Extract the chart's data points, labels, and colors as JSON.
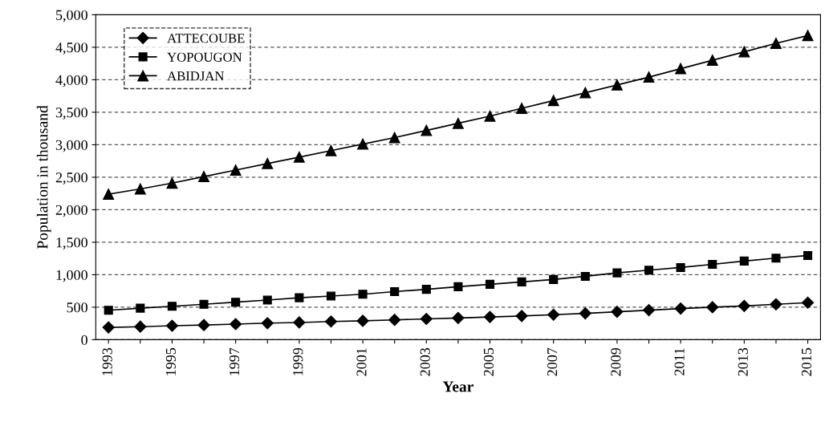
{
  "chart_data": {
    "type": "line",
    "xlabel": "Year",
    "ylabel": "Population in thousand",
    "categories": [
      "1993",
      null,
      "1995",
      null,
      "1997",
      null,
      "1999",
      null,
      "2001",
      null,
      "2003",
      null,
      "2005",
      null,
      "2007",
      null,
      "2009",
      null,
      "2011",
      null,
      "2013",
      null,
      "2015"
    ],
    "series": [
      {
        "name": "ATTECOUBE",
        "color": "#000000",
        "marker": "diamond",
        "values": [
          190,
          200,
          215,
          225,
          240,
          255,
          265,
          280,
          290,
          305,
          320,
          335,
          350,
          365,
          385,
          405,
          430,
          455,
          480,
          500,
          520,
          545,
          570
        ]
      },
      {
        "name": "YOPOUGON",
        "color": "#000000",
        "marker": "square",
        "values": [
          453,
          485,
          515,
          545,
          577,
          610,
          646,
          672,
          700,
          740,
          775,
          815,
          852,
          890,
          926,
          975,
          1028,
          1070,
          1111,
          1160,
          1210,
          1255,
          1296
        ]
      },
      {
        "name": "ABIDJAN",
        "color": "#000000",
        "marker": "triangle",
        "values": [
          2240,
          2320,
          2410,
          2510,
          2610,
          2710,
          2810,
          2910,
          3010,
          3110,
          3220,
          3330,
          3440,
          3560,
          3680,
          3800,
          3920,
          4040,
          4170,
          4300,
          4430,
          4560,
          4680
        ]
      }
    ],
    "ylim": [
      0,
      5000
    ],
    "yticks": [
      {
        "value": 0,
        "label": "0"
      },
      {
        "value": 500,
        "label": "500"
      },
      {
        "value": 1000,
        "label": "1,000"
      },
      {
        "value": 1500,
        "label": "1,500"
      },
      {
        "value": 2000,
        "label": "2,000"
      },
      {
        "value": 2500,
        "label": "2,500"
      },
      {
        "value": 3000,
        "label": "3,000"
      },
      {
        "value": 3500,
        "label": "3,500"
      },
      {
        "value": 4000,
        "label": "4,000"
      },
      {
        "value": 4500,
        "label": "4,500"
      },
      {
        "value": 5000,
        "label": "5,000"
      }
    ],
    "grid": "y",
    "legend": "top left",
    "line_style": "solid"
  }
}
